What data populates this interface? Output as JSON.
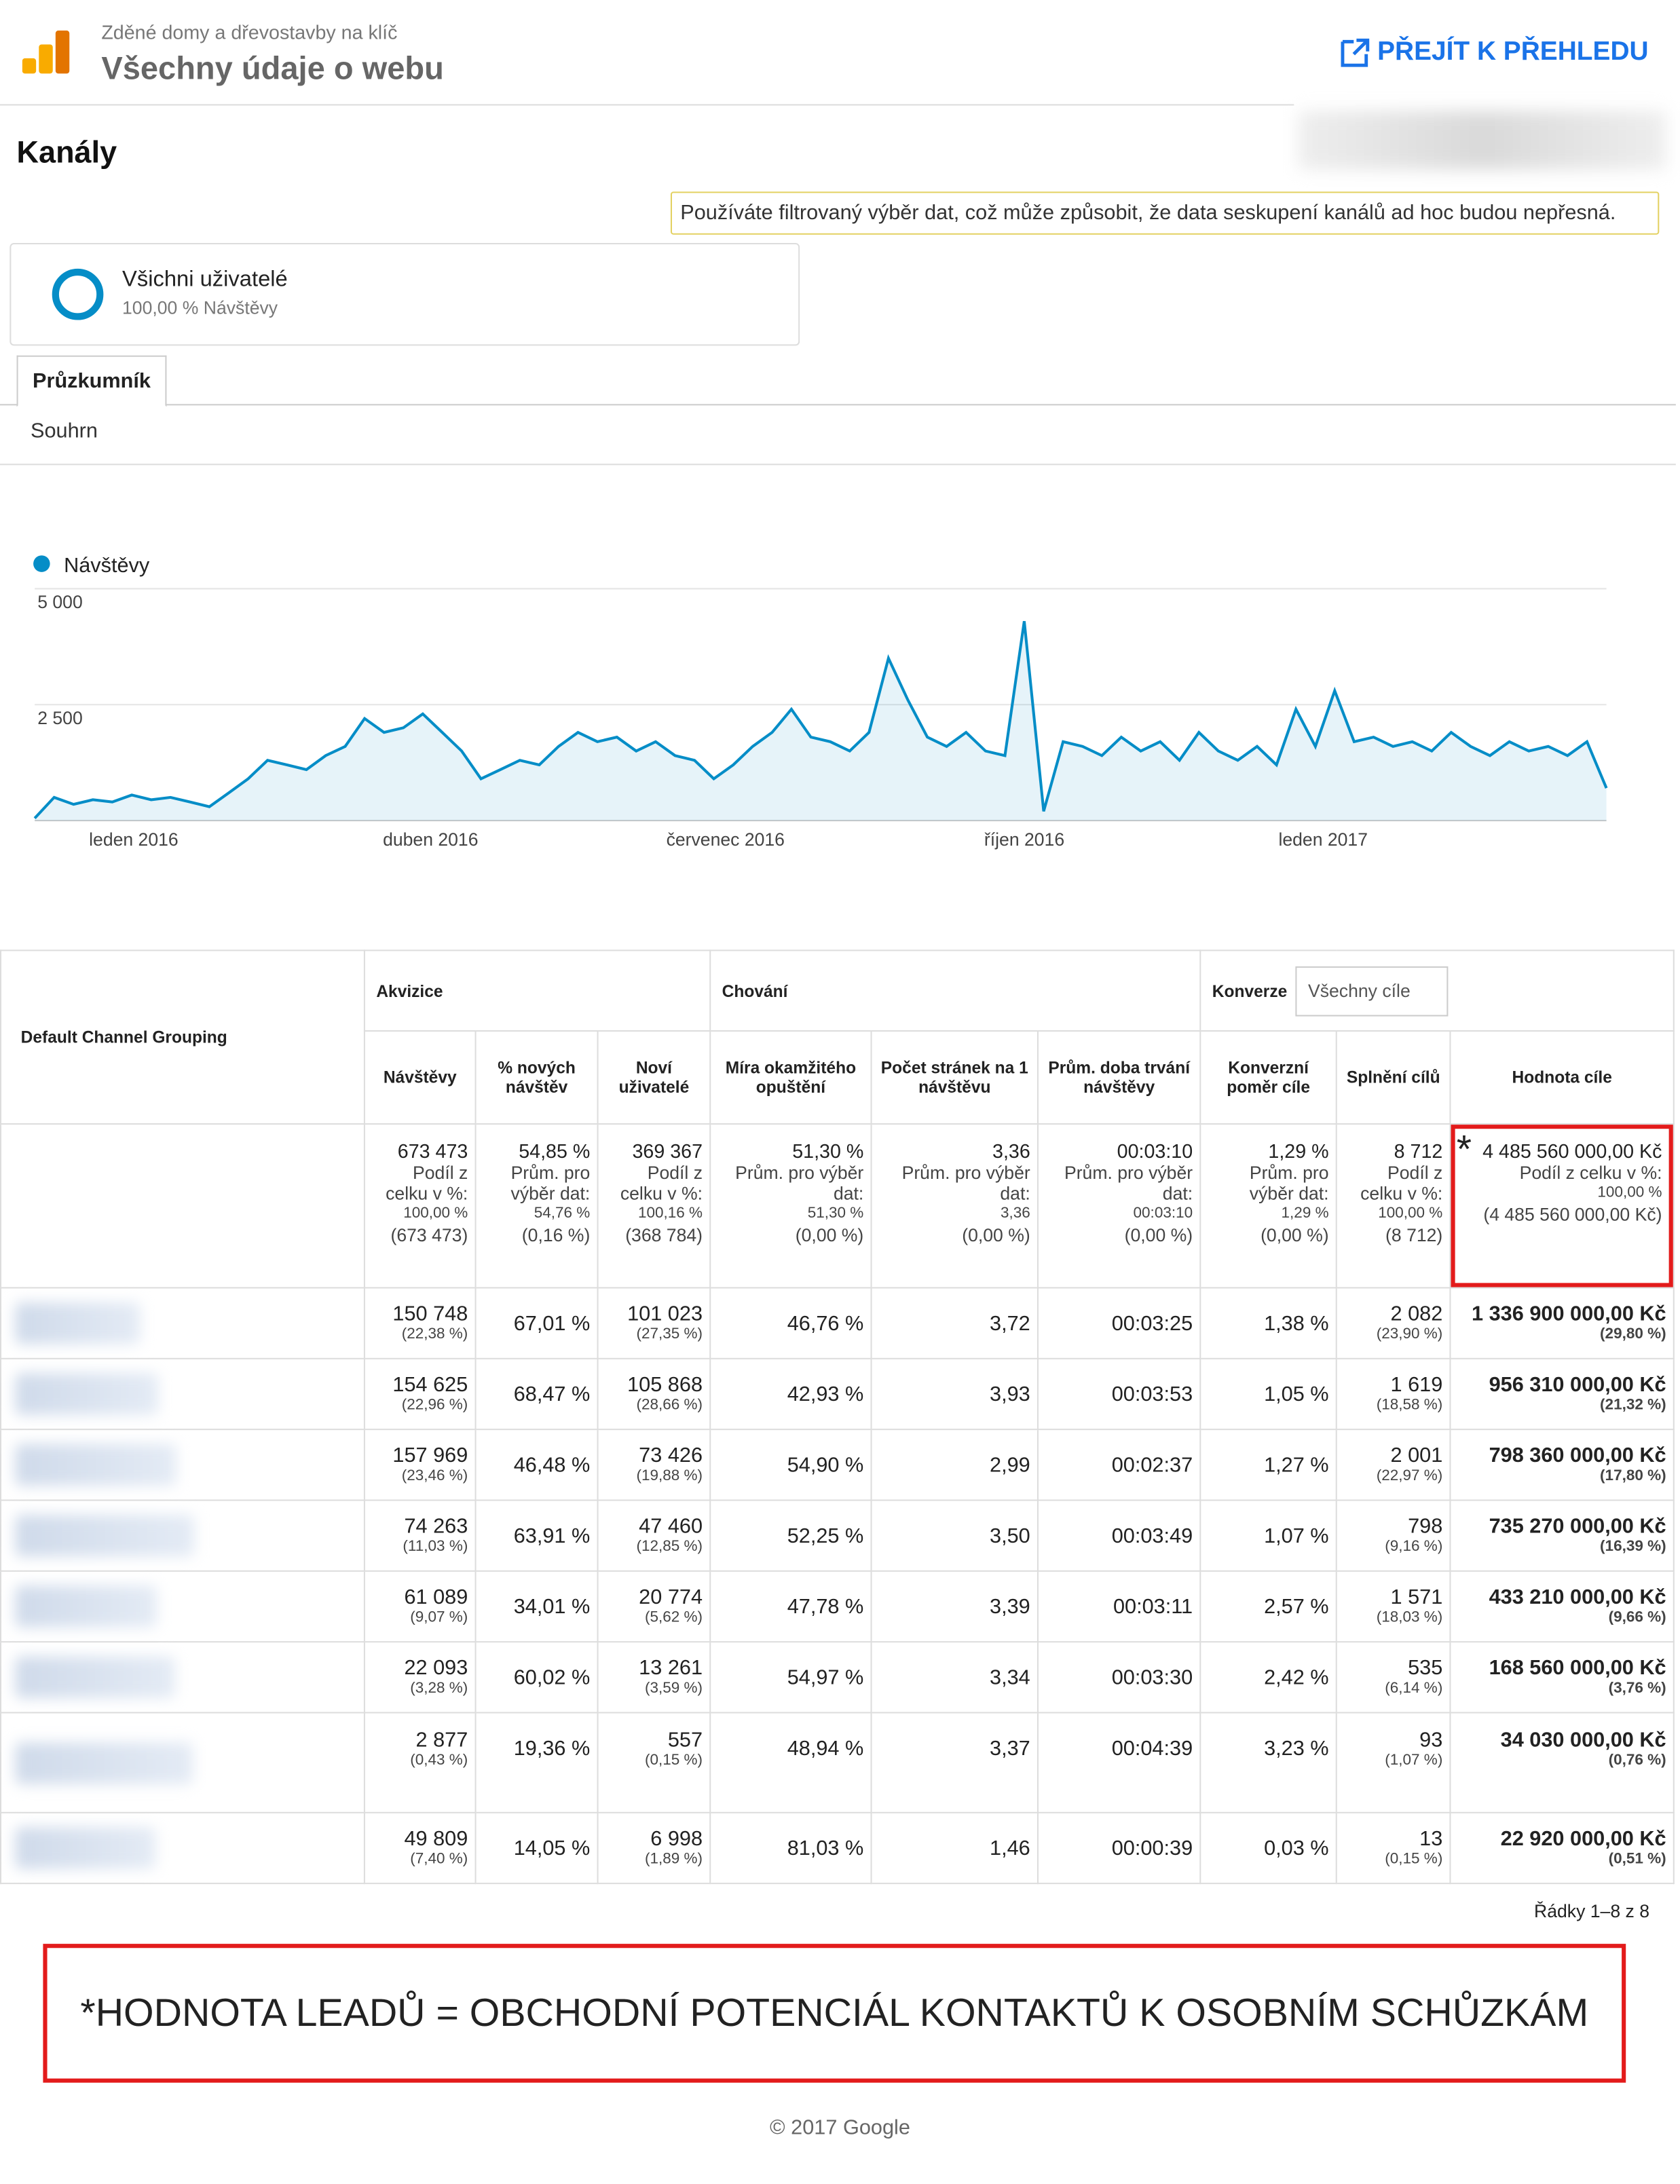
{
  "header": {
    "subtitle": "Zděné domy a dřevostavby na klíč",
    "title": "Všechny údaje o webu",
    "link": "PŘEJÍT K PŘEHLEDU"
  },
  "page_title": "Kanály",
  "notice": "Používáte filtrovaný výběr dat, což může způsobit, že data seskupení kanálů ad hoc budou nepřesná.",
  "segment": {
    "name": "Všichni uživatelé",
    "detail": "100,00 % Návštěvy"
  },
  "tab": "Průzkumník",
  "subtab": "Souhrn",
  "chart_data": {
    "type": "line",
    "series": [
      {
        "name": "Návštěvy",
        "color": "#058dc7",
        "values": [
          50,
          500,
          350,
          450,
          400,
          550,
          450,
          500,
          400,
          300,
          600,
          900,
          1300,
          1200,
          1100,
          1400,
          1600,
          2200,
          1900,
          2000,
          2300,
          1900,
          1500,
          900,
          1100,
          1300,
          1200,
          1600,
          1900,
          1700,
          1800,
          1500,
          1700,
          1400,
          1300,
          900,
          1200,
          1600,
          1900,
          2400,
          1800,
          1700,
          1500,
          1900,
          3500,
          2600,
          1800,
          1600,
          1900,
          1500,
          1400,
          4300,
          200,
          1700,
          1600,
          1400,
          1800,
          1500,
          1700,
          1300,
          1900,
          1500,
          1300,
          1600,
          1200,
          2400,
          1600,
          2800,
          1700,
          1800,
          1600,
          1700,
          1500,
          1900,
          1600,
          1400,
          1700,
          1500,
          1600,
          1400,
          1700,
          700
        ]
      }
    ],
    "xlim": [
      0,
      81
    ],
    "xticks": [
      {
        "value": 5.1,
        "label": "leden 2016"
      },
      {
        "value": 20.4,
        "label": "duben 2016"
      },
      {
        "value": 35.6,
        "label": "červenec 2016"
      },
      {
        "value": 51,
        "label": "říjen 2016"
      },
      {
        "value": 66.4,
        "label": "leden 2017"
      }
    ],
    "ylim": [
      0,
      5000
    ],
    "yticks": [
      {
        "value": 2500,
        "label": "2 500"
      },
      {
        "value": 5000,
        "label": "5 000"
      }
    ],
    "grid": true
  },
  "table": {
    "dimension": "Default Channel Grouping",
    "groups": [
      "Akvizice",
      "Chování",
      "Konverze"
    ],
    "goal_select": "Všechny cíle",
    "columns": [
      "Návštěvy",
      "% nových návštěv",
      "Noví uživatelé",
      "Míra okamžitého opuštění",
      "Počet stránek na 1 návštěvu",
      "Prům. doba trvání návštěvy",
      "Konverzní poměr cíle",
      "Splnění cílů",
      "Hodnota cíle"
    ],
    "total_marker": "*",
    "totals": [
      [
        "673 473",
        "Podíl z celku v %:",
        "100,00 %",
        "(673 473)"
      ],
      [
        "54,85 %",
        "Prům. pro výběr dat:",
        "54,76 %",
        "(0,16 %)"
      ],
      [
        "369 367",
        "Podíl z celku v %:",
        "100,16 %",
        "(368 784)"
      ],
      [
        "51,30 %",
        "Prům. pro výběr dat:",
        "51,30 %",
        "(0,00 %)"
      ],
      [
        "3,36",
        "Prům. pro výběr dat:",
        "3,36",
        "(0,00 %)"
      ],
      [
        "00:03:10",
        "Prům. pro výběr dat:",
        "00:03:10",
        "(0,00 %)"
      ],
      [
        "1,29 %",
        "Prům. pro výběr dat:",
        "1,29 %",
        "(0,00 %)"
      ],
      [
        "8 712",
        "Podíl z celku v %:",
        "100,00 %",
        "(8 712)"
      ],
      [
        "4 485 560 000,00 Kč",
        "Podíl z celku v %:",
        "100,00 %",
        "(4 485 560 000,00 Kč)"
      ]
    ],
    "rows": [
      [
        [
          "150 748",
          "(22,38 %)"
        ],
        [
          "67,01 %"
        ],
        [
          "101 023",
          "(27,35 %)"
        ],
        [
          "46,76 %"
        ],
        [
          "3,72"
        ],
        [
          "00:03:25"
        ],
        [
          "1,38 %"
        ],
        [
          "2 082",
          "(23,90 %)"
        ],
        [
          "1 336 900 000,00 Kč",
          "(29,80 %)"
        ]
      ],
      [
        [
          "154 625",
          "(22,96 %)"
        ],
        [
          "68,47 %"
        ],
        [
          "105 868",
          "(28,66 %)"
        ],
        [
          "42,93 %"
        ],
        [
          "3,93"
        ],
        [
          "00:03:53"
        ],
        [
          "1,05 %"
        ],
        [
          "1 619",
          "(18,58 %)"
        ],
        [
          "956 310 000,00 Kč",
          "(21,32 %)"
        ]
      ],
      [
        [
          "157 969",
          "(23,46 %)"
        ],
        [
          "46,48 %"
        ],
        [
          "73 426",
          "(19,88 %)"
        ],
        [
          "54,90 %"
        ],
        [
          "2,99"
        ],
        [
          "00:02:37"
        ],
        [
          "1,27 %"
        ],
        [
          "2 001",
          "(22,97 %)"
        ],
        [
          "798 360 000,00 Kč",
          "(17,80 %)"
        ]
      ],
      [
        [
          "74 263",
          "(11,03 %)"
        ],
        [
          "63,91 %"
        ],
        [
          "47 460",
          "(12,85 %)"
        ],
        [
          "52,25 %"
        ],
        [
          "3,50"
        ],
        [
          "00:03:49"
        ],
        [
          "1,07 %"
        ],
        [
          "798",
          "(9,16 %)"
        ],
        [
          "735 270 000,00 Kč",
          "(16,39 %)"
        ]
      ],
      [
        [
          "61 089",
          "(9,07 %)"
        ],
        [
          "34,01 %"
        ],
        [
          "20 774",
          "(5,62 %)"
        ],
        [
          "47,78 %"
        ],
        [
          "3,39"
        ],
        [
          "00:03:11"
        ],
        [
          "2,57 %"
        ],
        [
          "1 571",
          "(18,03 %)"
        ],
        [
          "433 210 000,00 Kč",
          "(9,66 %)"
        ]
      ],
      [
        [
          "22 093",
          "(3,28 %)"
        ],
        [
          "60,02 %"
        ],
        [
          "13 261",
          "(3,59 %)"
        ],
        [
          "54,97 %"
        ],
        [
          "3,34"
        ],
        [
          "00:03:30"
        ],
        [
          "2,42 %"
        ],
        [
          "535",
          "(6,14 %)"
        ],
        [
          "168 560 000,00 Kč",
          "(3,76 %)"
        ]
      ],
      [
        [
          "2 877",
          "(0,43 %)"
        ],
        [
          "19,36 %"
        ],
        [
          "557",
          "(0,15 %)"
        ],
        [
          "48,94 %"
        ],
        [
          "3,37"
        ],
        [
          "00:04:39"
        ],
        [
          "3,23 %"
        ],
        [
          "93",
          "(1,07 %)"
        ],
        [
          "34 030 000,00 Kč",
          "(0,76 %)"
        ]
      ],
      [
        [
          "49 809",
          "(7,40 %)"
        ],
        [
          "14,05 %"
        ],
        [
          "6 998",
          "(1,89 %)"
        ],
        [
          "81,03 %"
        ],
        [
          "1,46"
        ],
        [
          "00:00:39"
        ],
        [
          "0,03 %"
        ],
        [
          "13",
          "(0,15 %)"
        ],
        [
          "22 920 000,00 Kč",
          "(0,51 %)"
        ]
      ]
    ]
  },
  "pagination": "Řádky 1–8 z 8",
  "note": "*HODNOTA LEADŮ = OBCHODNÍ POTENCIÁL KONTAKTŮ K OSOBNÍM SCHŮZKÁM",
  "footer": "© 2017 Google"
}
